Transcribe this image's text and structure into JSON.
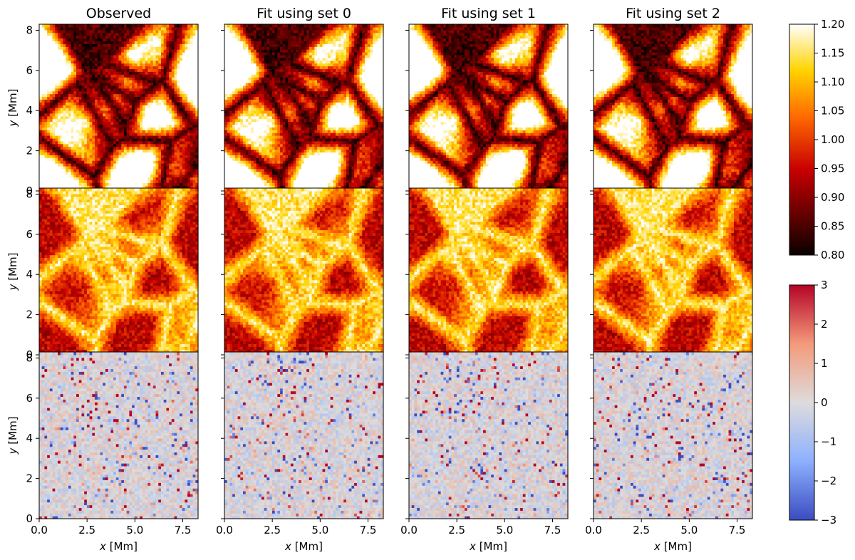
{
  "chart_data": {
    "type": "heatmap",
    "columns": [
      "Observed",
      "Fit using set 0",
      "Fit using set 1",
      "Fit using set 2"
    ],
    "rows": 3,
    "xlabel": {
      "var": "x",
      "unit": "[Mm]"
    },
    "ylabel": {
      "var": "y",
      "unit": "[Mm]"
    },
    "xlim": [
      0,
      8.3
    ],
    "ylim": [
      0,
      8.3
    ],
    "xticks": [
      0,
      2.5,
      5,
      7.5
    ],
    "xtick_labels": [
      "0.0",
      "2.5",
      "5.0",
      "7.5"
    ],
    "yticks": [
      0,
      2,
      4,
      6,
      8
    ],
    "ytick_labels": [
      "0",
      "2",
      "4",
      "6",
      "8"
    ],
    "colorbars": [
      {
        "colormap": "hot",
        "range": [
          0.8,
          1.2
        ],
        "ticks": [
          0.8,
          0.85,
          0.9,
          0.95,
          1.0,
          1.05,
          1.1,
          1.15,
          1.2
        ],
        "tick_labels": [
          "0.80",
          "0.85",
          "0.90",
          "0.95",
          "1.00",
          "1.05",
          "1.10",
          "1.15",
          "1.20"
        ],
        "applies_to_rows": [
          0,
          1
        ]
      },
      {
        "colormap": "coolwarm",
        "range": [
          -3,
          3
        ],
        "ticks": [
          -3,
          -2,
          -1,
          0,
          1,
          2,
          3
        ],
        "tick_labels": [
          "−3",
          "−2",
          "−1",
          "0",
          "1",
          "2",
          "3"
        ],
        "applies_to_rows": [
          2
        ]
      }
    ],
    "grid": false
  }
}
